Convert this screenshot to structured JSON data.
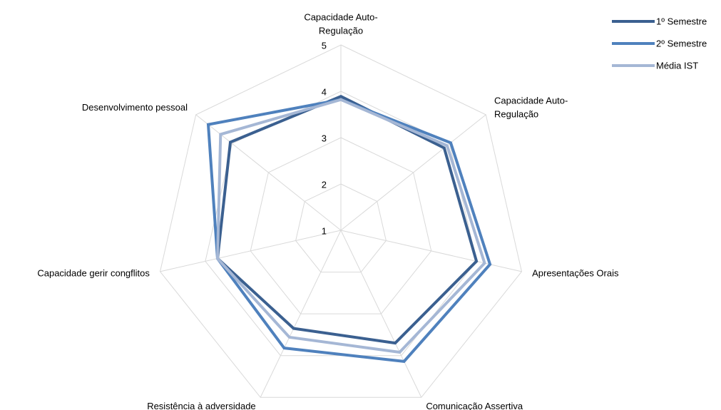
{
  "chart_data": {
    "type": "radar",
    "categories": [
      [
        "Capacidade Auto-",
        "Regulação"
      ],
      [
        "Capacidade Auto-",
        "Regulação"
      ],
      [
        "Apresentações Orais"
      ],
      [
        "Comunicação Assertiva"
      ],
      [
        "Resistência à adversidade"
      ],
      [
        "Capacidade gerir congflitos"
      ],
      [
        "Desenvolvimento pessoal"
      ]
    ],
    "series": [
      {
        "name": "1º Semestre",
        "color": "#3b6090",
        "values": [
          3.89,
          3.85,
          4.0,
          3.7,
          3.35,
          3.73,
          4.05
        ]
      },
      {
        "name": "2º Semestre",
        "color": "#4f81bd",
        "values": [
          3.82,
          4.03,
          4.3,
          4.14,
          3.82,
          3.73,
          4.66
        ]
      },
      {
        "name": "Média IST",
        "color": "#a5b7d5",
        "values": [
          3.82,
          3.93,
          4.18,
          3.92,
          3.56,
          3.73,
          4.32
        ]
      }
    ],
    "ylim": [
      1,
      5
    ],
    "yticks": [
      1,
      2,
      3,
      4,
      5
    ],
    "grid": true,
    "legend": "top-right"
  }
}
